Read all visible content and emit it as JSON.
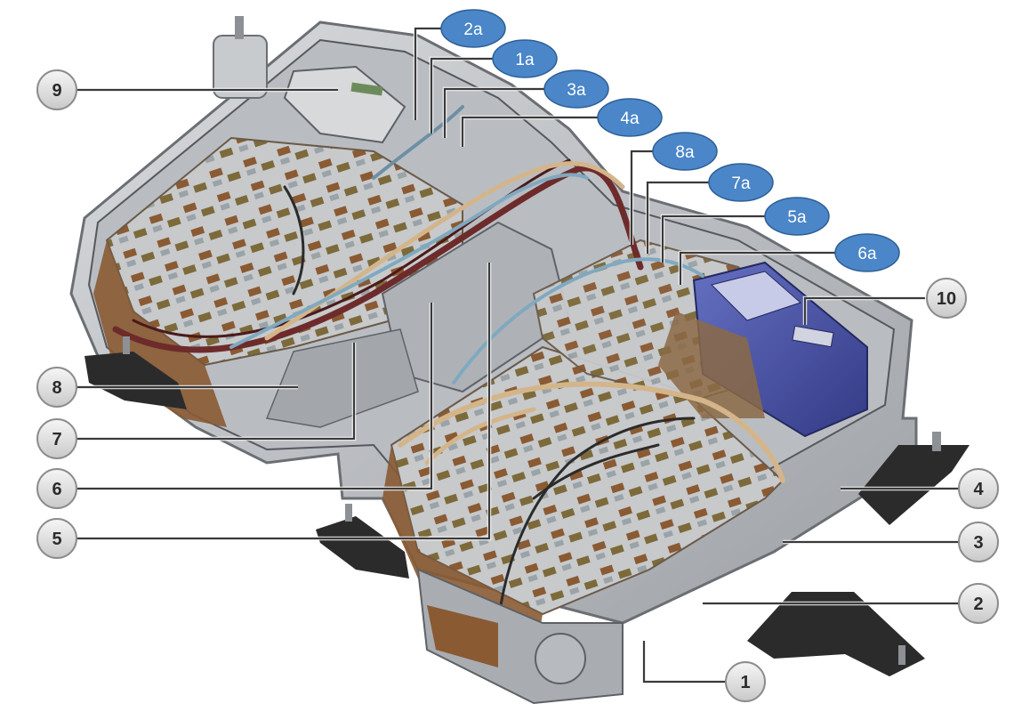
{
  "diagram": {
    "callouts": [
      {
        "id": "9",
        "label": "9"
      },
      {
        "id": "8",
        "label": "8"
      },
      {
        "id": "7",
        "label": "7"
      },
      {
        "id": "6",
        "label": "6"
      },
      {
        "id": "5",
        "label": "5"
      },
      {
        "id": "1",
        "label": "1"
      },
      {
        "id": "2",
        "label": "2"
      },
      {
        "id": "3",
        "label": "3"
      },
      {
        "id": "4",
        "label": "4"
      },
      {
        "id": "10",
        "label": "10"
      }
    ],
    "connector_callouts": [
      {
        "id": "2a",
        "label": "2a"
      },
      {
        "id": "1a",
        "label": "1a"
      },
      {
        "id": "3a",
        "label": "3a"
      },
      {
        "id": "4a",
        "label": "4a"
      },
      {
        "id": "8a",
        "label": "8a"
      },
      {
        "id": "7a",
        "label": "7a"
      },
      {
        "id": "5a",
        "label": "5a"
      },
      {
        "id": "6a",
        "label": "6a"
      }
    ],
    "colors": {
      "callout_circle_fill": "#e6e6e6",
      "callout_circle_stroke": "#8c8c8c",
      "connector_fill": "#4a86c8",
      "leader_line": "#3a3a3a",
      "battery_module_copper": "#8a5a33",
      "housing_gray": "#c9ccd0",
      "control_unit_blue": "#4b55a8"
    }
  }
}
